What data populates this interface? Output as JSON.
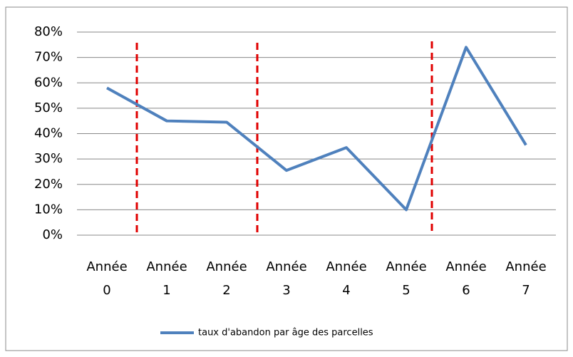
{
  "chart_data": {
    "type": "line",
    "categories": [
      "Année 0",
      "Année 1",
      "Année 2",
      "Année 3",
      "Année 4",
      "Année 5",
      "Année 6",
      "Année 7"
    ],
    "series": [
      {
        "name": "taux d'abandon par âge des parcelles",
        "color": "#4f81bd",
        "values": [
          58,
          45,
          44.5,
          25.5,
          34.5,
          10,
          74,
          35.5
        ]
      }
    ],
    "ylim": [
      0,
      80
    ],
    "yticks": [
      {
        "value": 0,
        "label": "0%"
      },
      {
        "value": 10,
        "label": "10%"
      },
      {
        "value": 20,
        "label": "20%"
      },
      {
        "value": 30,
        "label": "30%"
      },
      {
        "value": 40,
        "label": "40%"
      },
      {
        "value": 50,
        "label": "50%"
      },
      {
        "value": 60,
        "label": "60%"
      },
      {
        "value": 70,
        "label": "70%"
      },
      {
        "value": 80,
        "label": "80%"
      }
    ],
    "grid": true,
    "legend": "bottom"
  }
}
